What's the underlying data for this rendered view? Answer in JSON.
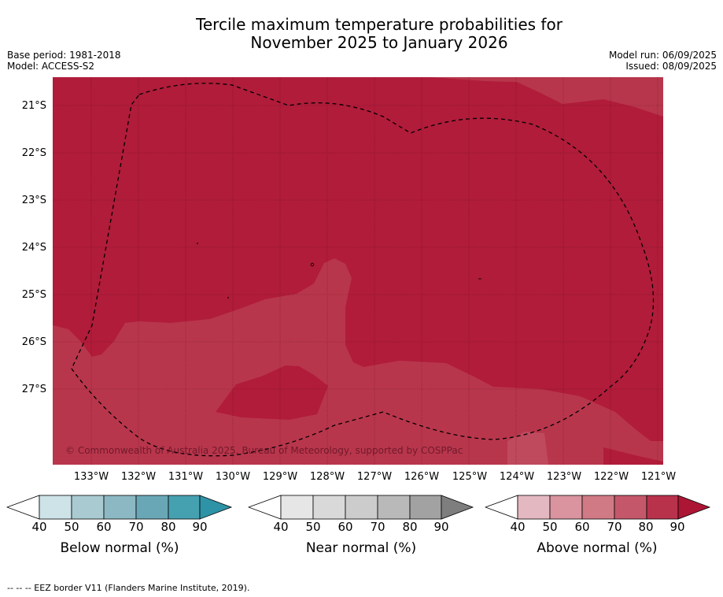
{
  "title_line1": "Tercile maximum temperature probabilities for",
  "title_line2": "November 2025 to January 2026",
  "base_period": "Base period: 1981-2018",
  "model": "Model: ACCESS-S2",
  "model_run": "Model run: 06/09/2025",
  "issued": "Issued: 08/09/2025",
  "lat_labels": [
    "21°S",
    "22°S",
    "23°S",
    "24°S",
    "25°S",
    "26°S",
    "27°S"
  ],
  "lon_labels": [
    "133°W",
    "132°W",
    "131°W",
    "130°W",
    "129°W",
    "128°W",
    "127°W",
    "126°W",
    "125°W",
    "124°W",
    "123°W",
    "122°W",
    "121°W"
  ],
  "copyright": "© Commonwealth of Australia 2025, Bureau of Meteorology, supported by COSPPac",
  "colorbars": [
    {
      "title": "Below normal (%)",
      "ticks": [
        "40",
        "50",
        "60",
        "70",
        "80",
        "90"
      ],
      "colors": [
        "#ffffff",
        "#cde3e8",
        "#a9cad1",
        "#8bb8c3",
        "#6aa7b6",
        "#45a0b0",
        "#2e93a6"
      ]
    },
    {
      "title": "Near normal (%)",
      "ticks": [
        "40",
        "50",
        "60",
        "70",
        "80",
        "90"
      ],
      "colors": [
        "#ffffff",
        "#e6e6e6",
        "#d9d9d9",
        "#cccccc",
        "#b9b9b9",
        "#a2a2a2",
        "#7e7e7e"
      ]
    },
    {
      "title": "Above normal (%)",
      "ticks": [
        "40",
        "50",
        "60",
        "70",
        "80",
        "90"
      ],
      "colors": [
        "#ffffff",
        "#e4b8c0",
        "#d9949f",
        "#d07a85",
        "#c4586a",
        "#b8324c",
        "#ac1634"
      ]
    }
  ],
  "map_colors": {
    "band_70_80": "#b8364c",
    "band_80_90": "#b01c3a"
  },
  "footnote": "--  --  -- EEZ border V11 (Flanders Marine Institute, 2019)."
}
